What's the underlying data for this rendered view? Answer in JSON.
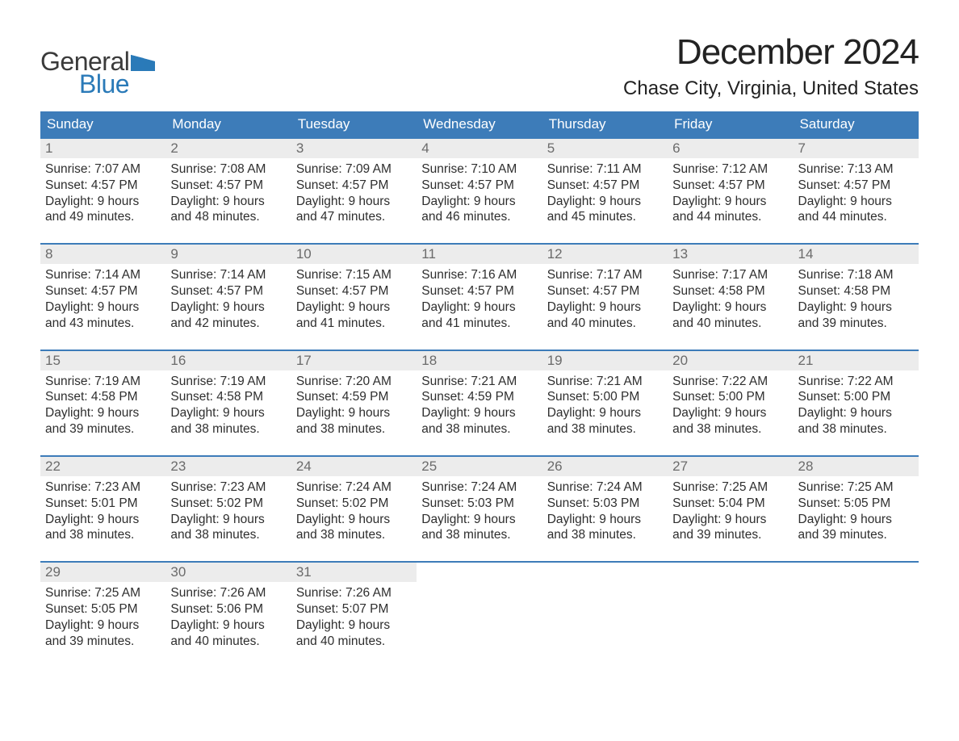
{
  "logo": {
    "text_top": "General",
    "text_bottom": "Blue",
    "flag_color": "#2a7ab8",
    "text_top_color": "#3a3a3a"
  },
  "header": {
    "month_title": "December 2024",
    "location": "Chase City, Virginia, United States"
  },
  "style": {
    "header_bg": "#3d7cb9",
    "header_text": "#ffffff",
    "daynum_bg": "#ececec",
    "daynum_color": "#6b6b6b",
    "body_text": "#2e2e2e",
    "week_border": "#3d7cb9",
    "page_bg": "#ffffff",
    "title_fontsize_pt": 33,
    "location_fontsize_pt": 18,
    "weekday_fontsize_pt": 13,
    "daynum_fontsize_pt": 13,
    "body_fontsize_pt": 12
  },
  "weekdays": [
    "Sunday",
    "Monday",
    "Tuesday",
    "Wednesday",
    "Thursday",
    "Friday",
    "Saturday"
  ],
  "labels": {
    "sunrise": "Sunrise:",
    "sunset": "Sunset:",
    "daylight": "Daylight:"
  },
  "weeks": [
    [
      {
        "day": "1",
        "sunrise": "7:07 AM",
        "sunset": "4:57 PM",
        "daylight": "9 hours and 49 minutes."
      },
      {
        "day": "2",
        "sunrise": "7:08 AM",
        "sunset": "4:57 PM",
        "daylight": "9 hours and 48 minutes."
      },
      {
        "day": "3",
        "sunrise": "7:09 AM",
        "sunset": "4:57 PM",
        "daylight": "9 hours and 47 minutes."
      },
      {
        "day": "4",
        "sunrise": "7:10 AM",
        "sunset": "4:57 PM",
        "daylight": "9 hours and 46 minutes."
      },
      {
        "day": "5",
        "sunrise": "7:11 AM",
        "sunset": "4:57 PM",
        "daylight": "9 hours and 45 minutes."
      },
      {
        "day": "6",
        "sunrise": "7:12 AM",
        "sunset": "4:57 PM",
        "daylight": "9 hours and 44 minutes."
      },
      {
        "day": "7",
        "sunrise": "7:13 AM",
        "sunset": "4:57 PM",
        "daylight": "9 hours and 44 minutes."
      }
    ],
    [
      {
        "day": "8",
        "sunrise": "7:14 AM",
        "sunset": "4:57 PM",
        "daylight": "9 hours and 43 minutes."
      },
      {
        "day": "9",
        "sunrise": "7:14 AM",
        "sunset": "4:57 PM",
        "daylight": "9 hours and 42 minutes."
      },
      {
        "day": "10",
        "sunrise": "7:15 AM",
        "sunset": "4:57 PM",
        "daylight": "9 hours and 41 minutes."
      },
      {
        "day": "11",
        "sunrise": "7:16 AM",
        "sunset": "4:57 PM",
        "daylight": "9 hours and 41 minutes."
      },
      {
        "day": "12",
        "sunrise": "7:17 AM",
        "sunset": "4:57 PM",
        "daylight": "9 hours and 40 minutes."
      },
      {
        "day": "13",
        "sunrise": "7:17 AM",
        "sunset": "4:58 PM",
        "daylight": "9 hours and 40 minutes."
      },
      {
        "day": "14",
        "sunrise": "7:18 AM",
        "sunset": "4:58 PM",
        "daylight": "9 hours and 39 minutes."
      }
    ],
    [
      {
        "day": "15",
        "sunrise": "7:19 AM",
        "sunset": "4:58 PM",
        "daylight": "9 hours and 39 minutes."
      },
      {
        "day": "16",
        "sunrise": "7:19 AM",
        "sunset": "4:58 PM",
        "daylight": "9 hours and 38 minutes."
      },
      {
        "day": "17",
        "sunrise": "7:20 AM",
        "sunset": "4:59 PM",
        "daylight": "9 hours and 38 minutes."
      },
      {
        "day": "18",
        "sunrise": "7:21 AM",
        "sunset": "4:59 PM",
        "daylight": "9 hours and 38 minutes."
      },
      {
        "day": "19",
        "sunrise": "7:21 AM",
        "sunset": "5:00 PM",
        "daylight": "9 hours and 38 minutes."
      },
      {
        "day": "20",
        "sunrise": "7:22 AM",
        "sunset": "5:00 PM",
        "daylight": "9 hours and 38 minutes."
      },
      {
        "day": "21",
        "sunrise": "7:22 AM",
        "sunset": "5:00 PM",
        "daylight": "9 hours and 38 minutes."
      }
    ],
    [
      {
        "day": "22",
        "sunrise": "7:23 AM",
        "sunset": "5:01 PM",
        "daylight": "9 hours and 38 minutes."
      },
      {
        "day": "23",
        "sunrise": "7:23 AM",
        "sunset": "5:02 PM",
        "daylight": "9 hours and 38 minutes."
      },
      {
        "day": "24",
        "sunrise": "7:24 AM",
        "sunset": "5:02 PM",
        "daylight": "9 hours and 38 minutes."
      },
      {
        "day": "25",
        "sunrise": "7:24 AM",
        "sunset": "5:03 PM",
        "daylight": "9 hours and 38 minutes."
      },
      {
        "day": "26",
        "sunrise": "7:24 AM",
        "sunset": "5:03 PM",
        "daylight": "9 hours and 38 minutes."
      },
      {
        "day": "27",
        "sunrise": "7:25 AM",
        "sunset": "5:04 PM",
        "daylight": "9 hours and 39 minutes."
      },
      {
        "day": "28",
        "sunrise": "7:25 AM",
        "sunset": "5:05 PM",
        "daylight": "9 hours and 39 minutes."
      }
    ],
    [
      {
        "day": "29",
        "sunrise": "7:25 AM",
        "sunset": "5:05 PM",
        "daylight": "9 hours and 39 minutes."
      },
      {
        "day": "30",
        "sunrise": "7:26 AM",
        "sunset": "5:06 PM",
        "daylight": "9 hours and 40 minutes."
      },
      {
        "day": "31",
        "sunrise": "7:26 AM",
        "sunset": "5:07 PM",
        "daylight": "9 hours and 40 minutes."
      },
      null,
      null,
      null,
      null
    ]
  ]
}
